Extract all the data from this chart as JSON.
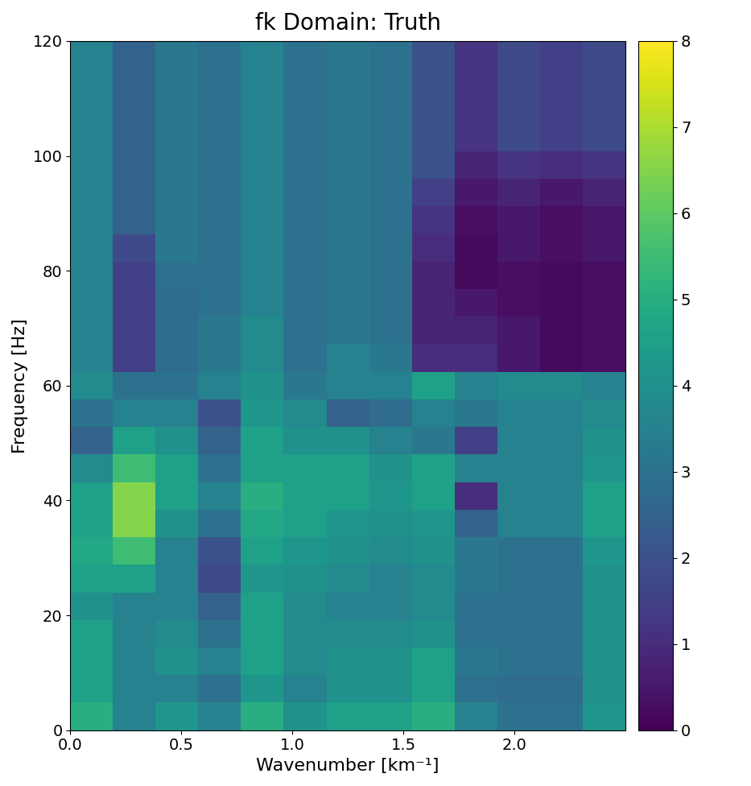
{
  "title": "fk Domain: Truth",
  "xlabel": "Wavenumber [km⁻¹]",
  "ylabel": "Frequency [Hz]",
  "cmap": "viridis",
  "vmin": 0,
  "vmax": 8,
  "freq_min": 0,
  "freq_max": 120,
  "k_min": 0.0,
  "k_max": 2.5,
  "figsize": [
    9.33,
    9.76
  ],
  "title_fontsize": 20,
  "label_fontsize": 16,
  "tick_fontsize": 14,
  "n_freq_bins": 25,
  "n_k_bins": 13,
  "data": [
    [
      3.5,
      2.5,
      3.2,
      3.0,
      3.5,
      3.0,
      3.2,
      3.0,
      2.0,
      1.2,
      1.8,
      1.5,
      1.8
    ],
    [
      3.5,
      2.5,
      3.2,
      3.0,
      3.5,
      3.0,
      3.2,
      3.0,
      2.0,
      1.2,
      1.8,
      1.5,
      1.8
    ],
    [
      3.5,
      2.5,
      3.2,
      3.0,
      3.5,
      3.0,
      3.2,
      3.0,
      2.0,
      1.2,
      1.8,
      1.5,
      1.8
    ],
    [
      3.5,
      2.5,
      3.2,
      3.0,
      3.5,
      3.0,
      3.2,
      3.0,
      2.0,
      1.2,
      1.8,
      1.5,
      1.8
    ],
    [
      3.5,
      2.5,
      3.2,
      3.0,
      3.5,
      3.0,
      3.2,
      3.0,
      2.0,
      0.8,
      1.2,
      1.0,
      1.2
    ],
    [
      3.5,
      2.5,
      3.2,
      3.0,
      3.5,
      3.0,
      3.2,
      3.0,
      1.5,
      0.5,
      0.8,
      0.5,
      0.8
    ],
    [
      3.5,
      2.5,
      3.2,
      3.0,
      3.5,
      3.0,
      3.2,
      3.0,
      1.2,
      0.3,
      0.5,
      0.3,
      0.5
    ],
    [
      3.5,
      1.8,
      3.2,
      3.0,
      3.5,
      3.0,
      3.2,
      3.0,
      1.0,
      0.2,
      0.5,
      0.3,
      0.5
    ],
    [
      3.5,
      1.5,
      3.0,
      3.0,
      3.5,
      3.0,
      3.2,
      3.0,
      0.8,
      0.2,
      0.3,
      0.2,
      0.3
    ],
    [
      3.5,
      1.5,
      2.8,
      3.0,
      3.5,
      3.0,
      3.2,
      3.0,
      0.8,
      0.5,
      0.3,
      0.2,
      0.3
    ],
    [
      3.5,
      1.5,
      2.8,
      3.2,
      3.8,
      3.0,
      3.2,
      3.0,
      0.8,
      0.8,
      0.5,
      0.2,
      0.3
    ],
    [
      3.5,
      1.5,
      2.8,
      3.2,
      3.8,
      3.0,
      3.5,
      3.2,
      1.0,
      1.0,
      0.5,
      0.2,
      0.3
    ],
    [
      3.8,
      3.0,
      3.0,
      3.5,
      4.0,
      3.2,
      3.5,
      3.5,
      4.5,
      3.5,
      3.8,
      3.8,
      3.5
    ],
    [
      3.0,
      3.5,
      3.5,
      2.0,
      4.2,
      3.8,
      2.5,
      2.8,
      3.5,
      3.2,
      3.5,
      3.5,
      3.8
    ],
    [
      2.5,
      4.5,
      4.0,
      2.5,
      4.5,
      4.0,
      4.0,
      3.5,
      3.2,
      1.5,
      3.5,
      3.5,
      4.0
    ],
    [
      3.8,
      5.5,
      4.5,
      3.0,
      4.5,
      4.5,
      4.5,
      4.0,
      4.5,
      3.5,
      3.5,
      3.5,
      4.2
    ],
    [
      4.5,
      6.5,
      4.5,
      3.5,
      5.0,
      4.5,
      4.5,
      4.2,
      4.5,
      1.0,
      3.5,
      3.5,
      4.5
    ],
    [
      4.5,
      6.5,
      4.0,
      3.0,
      4.8,
      4.5,
      4.2,
      4.0,
      4.2,
      2.5,
      3.5,
      3.5,
      4.5
    ],
    [
      4.8,
      5.5,
      3.5,
      2.0,
      4.5,
      4.2,
      4.0,
      3.8,
      4.0,
      3.2,
      3.0,
      3.0,
      4.2
    ],
    [
      4.5,
      4.5,
      3.5,
      1.8,
      4.2,
      4.0,
      3.8,
      3.5,
      3.8,
      3.2,
      3.0,
      3.0,
      4.0
    ],
    [
      4.0,
      3.5,
      3.5,
      2.5,
      4.5,
      3.8,
      3.5,
      3.5,
      3.8,
      3.0,
      3.0,
      3.0,
      4.0
    ],
    [
      4.5,
      3.5,
      3.8,
      3.0,
      4.5,
      3.8,
      3.8,
      3.8,
      4.0,
      3.0,
      3.0,
      3.0,
      4.0
    ],
    [
      4.5,
      3.5,
      4.0,
      3.5,
      4.5,
      3.8,
      4.0,
      4.0,
      4.5,
      3.2,
      3.0,
      3.0,
      4.0
    ],
    [
      4.5,
      3.5,
      3.5,
      3.0,
      4.2,
      3.5,
      4.0,
      4.0,
      4.5,
      3.0,
      2.8,
      2.8,
      4.0
    ],
    [
      5.0,
      3.5,
      4.2,
      3.5,
      5.0,
      4.0,
      4.5,
      4.5,
      5.0,
      3.5,
      3.0,
      3.0,
      4.2
    ]
  ],
  "xticks": [
    0.0,
    0.5,
    1.0,
    1.5,
    2.0
  ],
  "yticks": [
    0,
    20,
    40,
    60,
    80,
    100,
    120
  ]
}
